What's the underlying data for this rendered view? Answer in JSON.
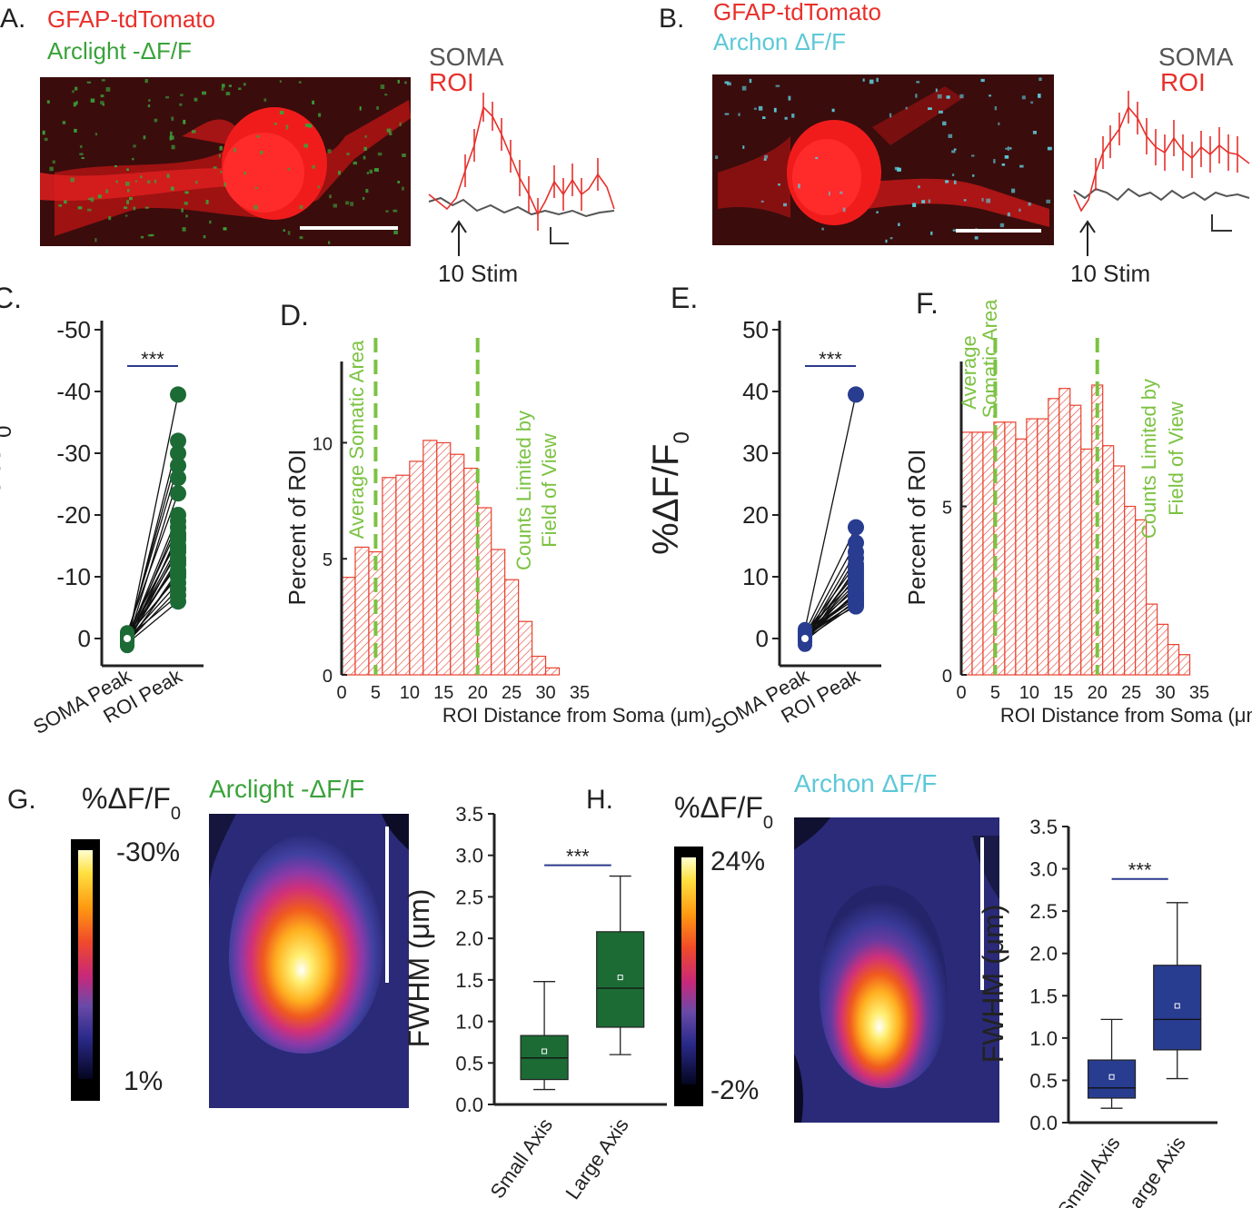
{
  "panels": {
    "a": {
      "letter": "A.",
      "line1": "GFAP-tdTomato",
      "line2": "Arclight -ΔF/F",
      "trace_soma": "SOMA",
      "trace_roi": "ROI",
      "stim": "10 Stim"
    },
    "b": {
      "letter": "B.",
      "line1": "GFAP-tdTomato",
      "line2": "Archon ΔF/F",
      "trace_soma": "SOMA",
      "trace_roi": "ROI",
      "stim": "10 Stim"
    },
    "g": {
      "letter": "G.",
      "unit": "%ΔF/F",
      "unit_sub": "0",
      "title": "Arclight -ΔF/F",
      "cb_max": "-30%",
      "cb_min": "1%"
    },
    "h": {
      "letter": "H.",
      "unit": "%ΔF/F",
      "unit_sub": "0",
      "title": "Archon ΔF/F",
      "cb_max": "24%",
      "cb_min": "-2%"
    }
  },
  "colors": {
    "red": "#e8302b",
    "green": "#3aa23a",
    "cyan": "#5cc8d8",
    "soma_gray": "#555555",
    "dark_green": "#1c6b35",
    "navy": "#283c90",
    "hist_red": "#e8412f",
    "dash_green": "#7cc242",
    "sig_line": "#2b3a8c"
  },
  "chart_data": [
    {
      "id": "C",
      "letter": "C.",
      "type": "scatter",
      "ylabel": "%-ΔF/F",
      "ylabel_sub": "0",
      "ylim": [
        0,
        -50
      ],
      "yticks": [
        "-50",
        "-40",
        "-30",
        "-20",
        "-10",
        "0"
      ],
      "categories": [
        "SOMA Peak",
        "ROI Peak"
      ],
      "significance": "***",
      "soma_values": [
        1,
        0.5,
        0,
        -0.5,
        0.8,
        -1,
        0.2,
        0.6,
        -0.3,
        1.2,
        0.4,
        -0.8,
        0.1,
        0.9,
        -0.2,
        0.5,
        0.3,
        -0.6,
        1.1,
        0.7,
        -0.4,
        0.2,
        0.6,
        -0.1,
        0.8
      ],
      "roi_values": [
        -39.5,
        -32,
        -30,
        -28,
        -26,
        -23.5,
        -20,
        -19,
        -18,
        -17,
        -16.5,
        -16,
        -15,
        -14.5,
        -14,
        -13,
        -12.5,
        -12,
        -11,
        -10.5,
        -10,
        -9,
        -8,
        -7,
        -6
      ]
    },
    {
      "id": "D",
      "letter": "D.",
      "type": "bar",
      "xlabel": "ROI Distance from Soma (μm)",
      "ylabel": "Percent of ROI",
      "xlim": [
        0,
        35
      ],
      "ylim": [
        0,
        13.5
      ],
      "xticks": [
        "0",
        "5",
        "10",
        "15",
        "20",
        "25",
        "30",
        "35"
      ],
      "yticks": [
        "0",
        "5",
        "10"
      ],
      "bin_width": 2,
      "bin_starts": [
        0,
        2,
        4,
        6,
        8,
        10,
        12,
        14,
        16,
        18,
        20,
        22,
        24,
        26,
        28,
        30
      ],
      "values": [
        4.2,
        5.5,
        5.3,
        8.5,
        8.6,
        9.2,
        10.1,
        10.0,
        9.5,
        8.9,
        7.2,
        5.4,
        4.1,
        2.3,
        0.8,
        0.3
      ],
      "dashed_lines_x": [
        5,
        20
      ],
      "annotation_left": "Average Somatic Area",
      "annotation_right_1": "Counts Limited by",
      "annotation_right_2": "Field of View"
    },
    {
      "id": "E",
      "letter": "E.",
      "type": "scatter",
      "ylabel": "%ΔF/F",
      "ylabel_sub": "0",
      "ylim": [
        0,
        50
      ],
      "yticks": [
        "50",
        "40",
        "30",
        "20",
        "10",
        "0"
      ],
      "categories": [
        "SOMA Peak",
        "ROI Peak"
      ],
      "significance": "***",
      "soma_values": [
        1.5,
        1,
        0.5,
        0,
        -0.5,
        0.8,
        -1,
        0.2,
        0.6,
        -0.3,
        1.2,
        0.4,
        0.1,
        0.9,
        -0.2,
        0.5,
        0.3,
        1.1,
        0.7,
        -0.4,
        0.2,
        0.6,
        -0.1,
        0.8
      ],
      "roi_values": [
        39.5,
        18,
        15.5,
        14,
        13,
        12,
        11.5,
        11,
        10.5,
        10,
        9.5,
        9,
        8.5,
        8,
        7.5,
        7.2,
        7,
        6.8,
        6.5,
        6.2,
        6,
        5.8,
        5.5,
        5.2
      ]
    },
    {
      "id": "F",
      "letter": "F.",
      "type": "bar",
      "xlabel": "ROI Distance from Soma (μm)",
      "ylabel": "Percent of ROI",
      "xlim": [
        0,
        35
      ],
      "ylim": [
        0,
        9.3
      ],
      "xticks": [
        "0",
        "5",
        "10",
        "15",
        "20",
        "25",
        "30",
        "35"
      ],
      "yticks": [
        "0",
        "5"
      ],
      "bin_width": 1.6,
      "bin_starts": [
        0,
        1.6,
        3.2,
        4.8,
        6.4,
        8.0,
        9.6,
        11.2,
        12.8,
        14.4,
        16.0,
        17.6,
        19.2,
        20.8,
        22.4,
        24.0,
        25.6,
        27.2,
        28.8,
        30.4,
        32.0
      ],
      "values": [
        7.2,
        7.2,
        7.2,
        7.5,
        7.5,
        7.0,
        7.6,
        7.6,
        8.2,
        8.5,
        8.0,
        6.7,
        8.6,
        6.8,
        6.2,
        5.0,
        4.6,
        2.1,
        1.5,
        0.9,
        0.6
      ],
      "dashed_lines_x": [
        5,
        20
      ],
      "annotation_left_1": "Average",
      "annotation_left_2": "Somatic Area",
      "annotation_right_1": "Counts Limited by",
      "annotation_right_2": "Field of View"
    },
    {
      "id": "G-box",
      "type": "box",
      "ylabel": "FWHM (μm)",
      "ylim": [
        0,
        3.5
      ],
      "yticks": [
        "0.0",
        "0.5",
        "1.0",
        "1.5",
        "2.0",
        "2.5",
        "3.0",
        "3.5"
      ],
      "categories": [
        "Small Axis",
        "Large Axis"
      ],
      "significance": "***",
      "boxes": [
        {
          "min": 0.18,
          "q1": 0.3,
          "median": 0.56,
          "mean": 0.64,
          "q3": 0.83,
          "max": 1.48
        },
        {
          "min": 0.6,
          "q1": 0.93,
          "median": 1.4,
          "mean": 1.53,
          "q3": 2.08,
          "max": 2.75
        }
      ]
    },
    {
      "id": "H-box",
      "type": "box",
      "ylabel": "FWHM (μm)",
      "ylim": [
        0,
        3.5
      ],
      "yticks": [
        "0.0",
        "0.5",
        "1.0",
        "1.5",
        "2.0",
        "2.5",
        "3.0",
        "3.5"
      ],
      "categories": [
        "Small Axis",
        "Large Axis"
      ],
      "significance": "***",
      "boxes": [
        {
          "min": 0.17,
          "q1": 0.29,
          "median": 0.41,
          "mean": 0.54,
          "q3": 0.74,
          "max": 1.22
        },
        {
          "min": 0.52,
          "q1": 0.86,
          "median": 1.22,
          "mean": 1.38,
          "q3": 1.86,
          "max": 2.6
        }
      ]
    }
  ]
}
